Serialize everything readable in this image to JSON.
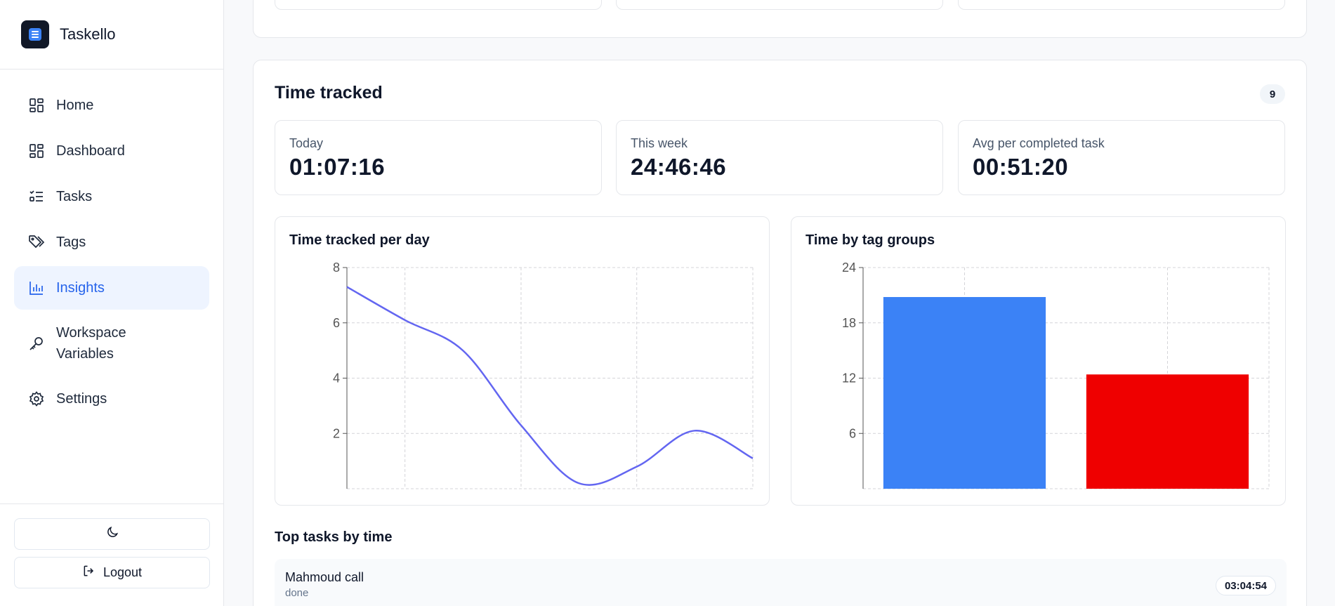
{
  "brand": {
    "name": "Taskello"
  },
  "sidebar": {
    "items": [
      {
        "label": "Home",
        "icon": "home-icon",
        "active": false
      },
      {
        "label": "Dashboard",
        "icon": "dashboard-icon",
        "active": false
      },
      {
        "label": "Tasks",
        "icon": "tasks-icon",
        "active": false
      },
      {
        "label": "Tags",
        "icon": "tags-icon",
        "active": false
      },
      {
        "label": "Insights",
        "icon": "insights-icon",
        "active": true
      },
      {
        "label": "Workspace Variables",
        "icon": "key-icon",
        "active": false
      },
      {
        "label": "Settings",
        "icon": "gear-icon",
        "active": false
      }
    ],
    "theme_toggle_icon": "moon-icon",
    "logout_label": "Logout"
  },
  "time_tracked": {
    "title": "Time tracked",
    "count": "9",
    "stats": [
      {
        "label": "Today",
        "value": "01:07:16"
      },
      {
        "label": "This week",
        "value": "24:46:46"
      },
      {
        "label": "Avg per completed task",
        "value": "00:51:20"
      }
    ]
  },
  "charts": {
    "per_day_title": "Time tracked per day",
    "tag_groups_title": "Time by tag groups"
  },
  "chart_data": [
    {
      "type": "line",
      "title": "Time tracked per day",
      "x": [
        0,
        1,
        2,
        3,
        4,
        5,
        6,
        7
      ],
      "values": [
        7.3,
        6.1,
        5.0,
        2.3,
        0.2,
        0.8,
        2.1,
        1.1
      ],
      "ylim": [
        0,
        8
      ],
      "yticks": [
        2,
        4,
        6,
        8
      ],
      "grid": true,
      "color": "#6366f1"
    },
    {
      "type": "bar",
      "title": "Time by tag groups",
      "categories": [
        "",
        ""
      ],
      "values": [
        20.8,
        12.4
      ],
      "colors": [
        "#3b82f6",
        "#ef0000"
      ],
      "ylim": [
        0,
        24
      ],
      "yticks": [
        6,
        12,
        18,
        24
      ],
      "grid": true
    }
  ],
  "top_tasks": {
    "title": "Top tasks by time",
    "rows": [
      {
        "name": "Mahmoud call",
        "status": "done",
        "time": "03:04:54"
      }
    ]
  }
}
